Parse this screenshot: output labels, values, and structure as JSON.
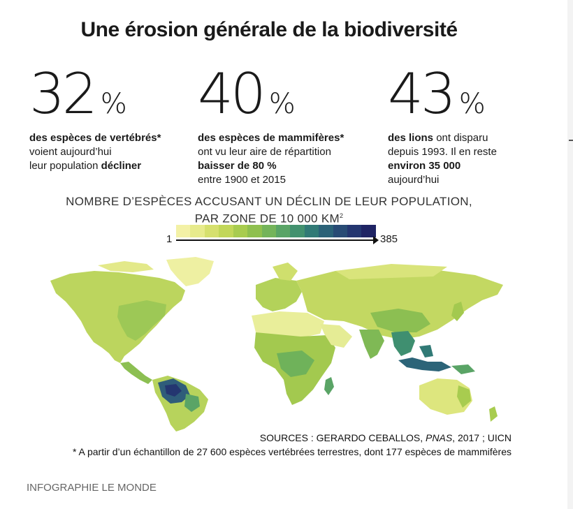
{
  "title": "Une érosion générale de la biodiversité",
  "stats": [
    {
      "number": "32",
      "unit": "%",
      "lines": [
        [
          {
            "t": "des espèces de vertébrés*",
            "b": true
          }
        ],
        [
          {
            "t": "voient aujourd’hui",
            "b": false
          }
        ],
        [
          {
            "t": "leur population ",
            "b": false
          },
          {
            "t": "décliner",
            "b": true
          }
        ]
      ]
    },
    {
      "number": "40",
      "unit": "%",
      "lines": [
        [
          {
            "t": "des espèces de mammifères*",
            "b": true
          }
        ],
        [
          {
            "t": "ont vu leur aire de répartition",
            "b": false
          }
        ],
        [
          {
            "t": "baisser de 80 %",
            "b": true
          }
        ],
        [
          {
            "t": "entre 1900 et 2015",
            "b": false
          }
        ]
      ]
    },
    {
      "number": "43",
      "unit": "%",
      "lines": [
        [
          {
            "t": "des lions",
            "b": true
          },
          {
            "t": " ont disparu",
            "b": false
          }
        ],
        [
          {
            "t": "depuis 1993. Il en reste",
            "b": false
          }
        ],
        [
          {
            "t": "environ 35 000",
            "b": true
          }
        ],
        [
          {
            "t": "aujourd’hui",
            "b": false
          }
        ]
      ]
    }
  ],
  "map": {
    "title_line1": "NOMBRE D’ESPÈCES ACCUSANT UN DÉCLIN DE LEUR POPULATION,",
    "title_line2": "PAR ZONE DE 10 000 KM",
    "title_sup": "2",
    "legend": {
      "min": "1",
      "max": "385",
      "colors": [
        "#f3f1a6",
        "#e7eb8c",
        "#d6e06e",
        "#c2d759",
        "#a8cc4f",
        "#8fc04f",
        "#74b45a",
        "#5aa466",
        "#42916f",
        "#317a76",
        "#2b6278",
        "#284b75",
        "#243670",
        "#1f2464"
      ]
    }
  },
  "sources": {
    "prefix": "SOURCES : GERARDO CEBALLOS, ",
    "journal": "PNAS",
    "suffix": ", 2017 ; UICN"
  },
  "footnote": "* A partir d’un échantillon de 27 600 espèces vertébrées terrestres, dont 177 espèces de mammifères",
  "credit": "INFOGRAPHIE LE MONDE"
}
